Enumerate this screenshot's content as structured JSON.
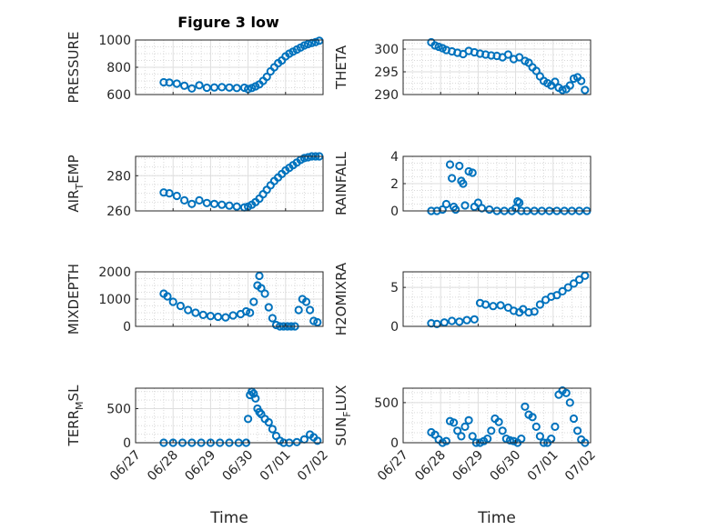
{
  "figure": {
    "title": "Figure 3 low",
    "marker_color": "#0072bd",
    "grid": true,
    "x_ticks": [
      "06/27",
      "06/28",
      "06/29",
      "06/30",
      "07/01",
      "07/02"
    ],
    "x_tick_positions": [
      0,
      1,
      2,
      3,
      4,
      5
    ],
    "x_label": "Time"
  },
  "chart_data": [
    {
      "type": "scatter",
      "ylabel": "PRESSURE",
      "ylabel_sub": null,
      "ylim": [
        600,
        1000
      ],
      "yticks": [
        600,
        800,
        1000
      ],
      "ytick_labels": [
        "600",
        "800",
        "1000"
      ],
      "x": [
        0.75,
        0.9,
        1.1,
        1.3,
        1.5,
        1.7,
        1.9,
        2.1,
        2.3,
        2.5,
        2.7,
        2.9,
        3.0,
        3.1,
        3.2,
        3.3,
        3.4,
        3.5,
        3.6,
        3.7,
        3.8,
        3.9,
        4.0,
        4.1,
        4.2,
        4.3,
        4.4,
        4.5,
        4.6,
        4.7,
        4.8,
        4.9
      ],
      "y": [
        690,
        688,
        680,
        665,
        645,
        668,
        650,
        652,
        654,
        651,
        648,
        650,
        640,
        648,
        660,
        675,
        700,
        730,
        770,
        800,
        830,
        850,
        880,
        900,
        915,
        930,
        945,
        960,
        970,
        978,
        985,
        995
      ]
    },
    {
      "type": "scatter",
      "ylabel": "THETA",
      "ylabel_sub": null,
      "ylim": [
        290,
        302
      ],
      "yticks": [
        290,
        295,
        300
      ],
      "ytick_labels": [
        "290",
        "295",
        "300"
      ],
      "x": [
        0.75,
        0.85,
        0.95,
        1.05,
        1.15,
        1.3,
        1.45,
        1.6,
        1.75,
        1.9,
        2.05,
        2.2,
        2.35,
        2.5,
        2.65,
        2.8,
        2.95,
        3.1,
        3.25,
        3.35,
        3.45,
        3.55,
        3.65,
        3.75,
        3.85,
        3.95,
        4.05,
        4.15,
        4.25,
        4.35,
        4.45,
        4.55,
        4.65,
        4.75,
        4.85
      ],
      "y": [
        301.5,
        300.8,
        300.5,
        300.2,
        299.8,
        299.5,
        299.2,
        298.9,
        299.6,
        299.3,
        299.0,
        298.8,
        298.6,
        298.5,
        298.2,
        298.8,
        297.8,
        298.2,
        297.4,
        297.0,
        296.0,
        295.2,
        294.0,
        293.0,
        292.5,
        292.0,
        292.8,
        291.5,
        291.0,
        291.2,
        292.0,
        293.5,
        293.8,
        293.0,
        291.0
      ]
    },
    {
      "type": "scatter",
      "ylabel": "AIR",
      "ylabel_sub": "T",
      "ylabel_suffix": "EMP",
      "ylim": [
        260,
        291
      ],
      "yticks": [
        260,
        280
      ],
      "ytick_labels": [
        "260",
        "280"
      ],
      "x": [
        0.75,
        0.9,
        1.1,
        1.3,
        1.5,
        1.7,
        1.9,
        2.1,
        2.3,
        2.5,
        2.7,
        2.9,
        3.0,
        3.1,
        3.2,
        3.3,
        3.4,
        3.5,
        3.6,
        3.7,
        3.8,
        3.9,
        4.0,
        4.1,
        4.2,
        4.3,
        4.4,
        4.5,
        4.6,
        4.7,
        4.8,
        4.9
      ],
      "y": [
        270.5,
        270.0,
        268.5,
        266.0,
        264.0,
        266.0,
        264.5,
        264.0,
        263.5,
        263.0,
        262.5,
        262.0,
        262.5,
        263.5,
        265.0,
        267.0,
        269.5,
        272.0,
        274.5,
        277.0,
        279.0,
        281.0,
        283.0,
        284.5,
        286.0,
        287.5,
        289.0,
        290.0,
        290.5,
        291.0,
        291.0,
        291.0
      ]
    },
    {
      "type": "scatter",
      "ylabel": "RAINFALL",
      "ylabel_sub": null,
      "ylim": [
        0,
        4
      ],
      "yticks": [
        0,
        2,
        4
      ],
      "ytick_labels": [
        "0",
        "2",
        "4"
      ],
      "x": [
        0.75,
        0.9,
        1.05,
        1.15,
        1.25,
        1.3,
        1.35,
        1.4,
        1.5,
        1.55,
        1.6,
        1.65,
        1.75,
        1.85,
        1.9,
        2.0,
        2.1,
        2.3,
        2.5,
        2.7,
        2.9,
        3.0,
        3.05,
        3.1,
        3.15,
        3.3,
        3.5,
        3.7,
        3.9,
        4.1,
        4.3,
        4.5,
        4.7,
        4.9
      ],
      "y": [
        0,
        0,
        0.1,
        0.5,
        3.4,
        2.4,
        0.3,
        0.1,
        3.3,
        2.2,
        2.0,
        0.4,
        2.9,
        2.8,
        0.3,
        0.6,
        0.2,
        0.1,
        0,
        0,
        0,
        0.2,
        0.7,
        0.6,
        0,
        0,
        0,
        0,
        0,
        0,
        0,
        0,
        0,
        0
      ]
    },
    {
      "type": "scatter",
      "ylabel": "MIXDEPTH",
      "ylabel_sub": null,
      "ylim": [
        0,
        2000
      ],
      "yticks": [
        0,
        1000,
        2000
      ],
      "ytick_labels": [
        "0",
        "1000",
        "2000"
      ],
      "x": [
        0.75,
        0.85,
        1.0,
        1.2,
        1.4,
        1.6,
        1.8,
        2.0,
        2.2,
        2.4,
        2.6,
        2.8,
        2.95,
        3.05,
        3.15,
        3.25,
        3.3,
        3.35,
        3.45,
        3.55,
        3.65,
        3.75,
        3.85,
        3.95,
        4.05,
        4.15,
        4.25,
        4.35,
        4.45,
        4.55,
        4.65,
        4.75,
        4.85
      ],
      "y": [
        1200,
        1100,
        900,
        750,
        600,
        500,
        420,
        380,
        350,
        330,
        400,
        450,
        550,
        500,
        900,
        1500,
        1850,
        1400,
        1200,
        700,
        300,
        50,
        0,
        0,
        0,
        0,
        0,
        600,
        1000,
        900,
        600,
        200,
        150
      ]
    },
    {
      "type": "scatter",
      "ylabel": "H2OMIXRA",
      "ylabel_sub": null,
      "ylim": [
        0,
        7
      ],
      "yticks": [
        0,
        5
      ],
      "ytick_labels": [
        "0",
        "5"
      ],
      "x": [
        0.75,
        0.9,
        1.1,
        1.3,
        1.5,
        1.7,
        1.9,
        2.05,
        2.2,
        2.4,
        2.6,
        2.8,
        2.95,
        3.1,
        3.2,
        3.35,
        3.5,
        3.65,
        3.8,
        3.95,
        4.1,
        4.25,
        4.4,
        4.55,
        4.7,
        4.85
      ],
      "y": [
        0.4,
        0.3,
        0.5,
        0.7,
        0.6,
        0.8,
        0.9,
        3.0,
        2.8,
        2.6,
        2.7,
        2.4,
        2.0,
        1.8,
        2.2,
        1.8,
        1.9,
        2.8,
        3.4,
        3.8,
        4.0,
        4.5,
        5.0,
        5.5,
        6.0,
        6.5
      ]
    },
    {
      "type": "scatter",
      "ylabel": "TERR",
      "ylabel_sub": "M",
      "ylabel_suffix": "SL",
      "ylim": [
        0,
        800
      ],
      "yticks": [
        0,
        500
      ],
      "ytick_labels": [
        "0",
        "500"
      ],
      "x": [
        0.75,
        1.0,
        1.25,
        1.5,
        1.75,
        2.0,
        2.25,
        2.5,
        2.75,
        2.95,
        3.0,
        3.05,
        3.1,
        3.15,
        3.2,
        3.25,
        3.3,
        3.35,
        3.45,
        3.55,
        3.65,
        3.75,
        3.85,
        3.95,
        4.1,
        4.3,
        4.5,
        4.65,
        4.75,
        4.85
      ],
      "y": [
        0,
        0,
        0,
        0,
        0,
        0,
        0,
        0,
        0,
        0,
        350,
        700,
        750,
        720,
        650,
        500,
        450,
        420,
        350,
        300,
        200,
        100,
        30,
        0,
        0,
        10,
        50,
        120,
        80,
        30
      ]
    },
    {
      "type": "scatter",
      "ylabel": "SUN",
      "ylabel_sub": "F",
      "ylabel_suffix": "LUX",
      "ylim": [
        0,
        680
      ],
      "yticks": [
        0,
        500
      ],
      "ytick_labels": [
        "0",
        "500"
      ],
      "x": [
        0.75,
        0.85,
        0.95,
        1.05,
        1.15,
        1.25,
        1.35,
        1.45,
        1.55,
        1.65,
        1.75,
        1.85,
        1.95,
        2.05,
        2.15,
        2.25,
        2.35,
        2.45,
        2.55,
        2.65,
        2.75,
        2.85,
        2.95,
        3.05,
        3.15,
        3.25,
        3.35,
        3.45,
        3.55,
        3.65,
        3.75,
        3.85,
        3.95,
        4.05,
        4.15,
        4.25,
        4.35,
        4.45,
        4.55,
        4.65,
        4.75,
        4.85
      ],
      "y": [
        130,
        100,
        40,
        0,
        20,
        270,
        250,
        150,
        80,
        200,
        280,
        80,
        0,
        0,
        20,
        50,
        150,
        300,
        260,
        150,
        50,
        30,
        20,
        0,
        50,
        450,
        350,
        320,
        200,
        80,
        0,
        0,
        50,
        200,
        600,
        650,
        620,
        500,
        300,
        150,
        40,
        0
      ]
    }
  ]
}
